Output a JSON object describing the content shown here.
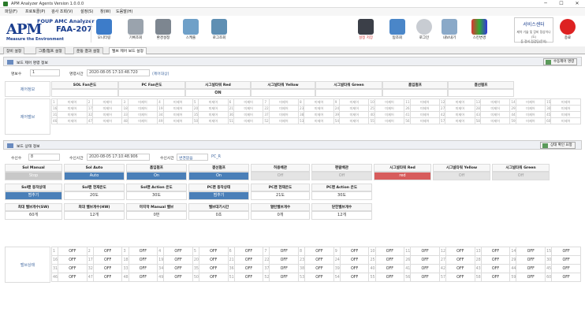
{
  "app": {
    "title": "APM Analyzer Agents Version 1.0.0.0"
  },
  "menu": [
    "파일(F)",
    "프로토콜(P)",
    "검사 조회(V)",
    "설정(S)",
    "창(W)",
    "도움말(H)"
  ],
  "logo": {
    "apm": "APM",
    "foup": "FOUP AMC Analyzer",
    "model": "FAA-207",
    "tagline": "Measure the Environment"
  },
  "toolbar": {
    "left": [
      "모니터링",
      "기록조회",
      "환경설정",
      "스케줄",
      "로그조회"
    ],
    "right": {
      "start_stop": "설정 저장",
      "search": "탑조회",
      "login": "로그인",
      "export": "내보내기",
      "skin": "스킨변경",
      "exit": "종료"
    },
    "service": {
      "title": "서비스센터",
      "line1": "제약 기술 및 장비 정상이나(도)",
      "line2": "등 정비,점검팀(문의)"
    }
  },
  "tabs": [
    "장비 설정",
    "그룹/펌프 설정",
    "운동 결과 설정",
    "밸브 제어 보드 설정"
  ],
  "section1": {
    "title": "보드 제어 명령 정보",
    "button": "수동제어 명령",
    "board_label": "명보수",
    "board_value": "1",
    "time_label": "명령시간",
    "time_value": "2020-08-05 17:10:48.720",
    "time_tag": "(제어대상)"
  },
  "ctrl_headers": [
    "SOL Fan온도",
    "PC Fan온도",
    "시그널타워 Red",
    "시그널타워 Yellow",
    "시그널타워 Green",
    "흡입펌프",
    "결선펌프"
  ],
  "ctrl_values": [
    "",
    "",
    "ON",
    "",
    "",
    "",
    ""
  ],
  "side_labels": {
    "control": "제어정보",
    "valve": "제어밸브",
    "valve_state": "밸브상태"
  },
  "placeholder": "미제어",
  "section2": {
    "title": "보드 상태 정보",
    "button": "상태 확인 요청",
    "unit_label": "수신수",
    "unit_value": "8",
    "recv_label": "수신시간",
    "recv_value": "2020-08-05 17:10:48.906",
    "state_label": "수신시간",
    "state_value": "변경없음",
    "pc_value": "PC_R"
  },
  "status_rows": [
    {
      "headers": [
        "Sol Manual",
        "Sol Auto",
        "흡입펌프",
        "결선펌프",
        "허용배관",
        "편람배관",
        "시그널타워 Red",
        "시그널타워 Yellow",
        "시그널타워 Green"
      ],
      "values": [
        "Stop",
        "Auto",
        "On",
        "On",
        "Off",
        "Off",
        "red",
        "Off",
        "Off"
      ]
    },
    {
      "headers": [
        "Sol팬 동작상태",
        "Sol팬 현재온도",
        "Sol팬 Action 온도",
        "PC팬 동작상태",
        "PC팬 현재온도",
        "PC팬 Action 온도"
      ],
      "values": [
        "멈추기",
        "20도",
        "30도",
        "멈추기",
        "21도",
        "30도"
      ]
    },
    {
      "headers": [
        "최대 밸브개수(SW)",
        "최대 밸브개수(HW)",
        "마지막 Manual 밸브",
        "밸브대기시간",
        "열린밸브개수",
        "닫힌밸브개수"
      ],
      "values": [
        "60개",
        "12개",
        "0번",
        "0초",
        "0개",
        "12개"
      ]
    }
  ],
  "off_label": "OFF"
}
